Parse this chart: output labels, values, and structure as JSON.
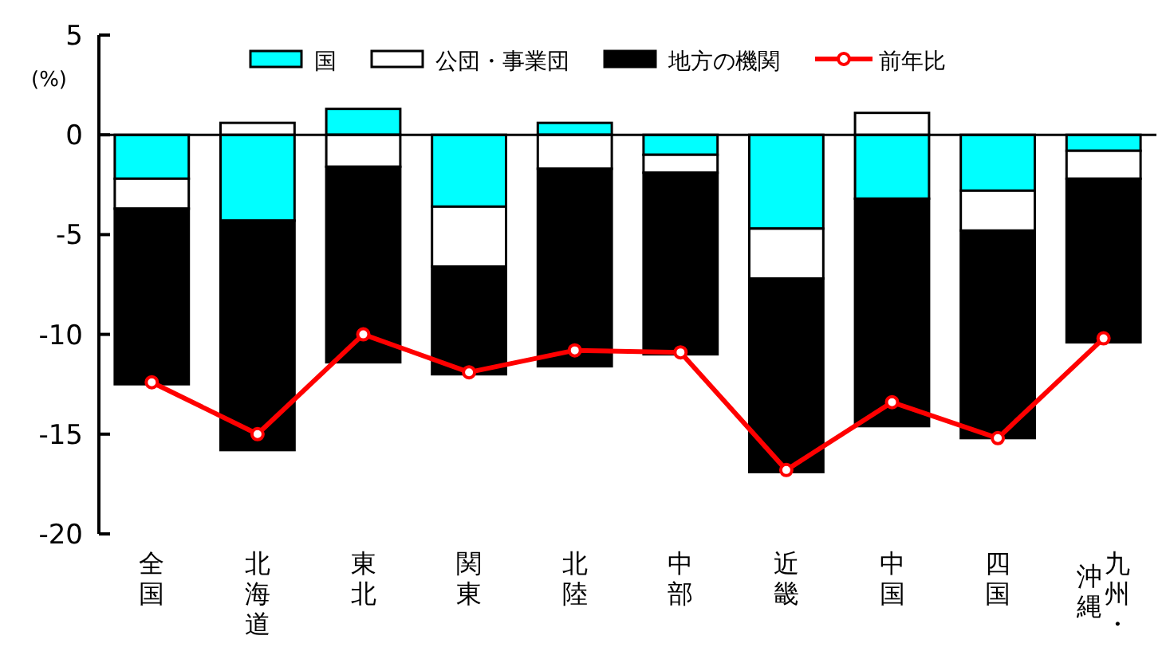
{
  "chart_data": {
    "type": "bar",
    "stacked": true,
    "ylabel": "(%)",
    "legend": "top",
    "ylim": [
      -20,
      5
    ],
    "yticks": [
      -20,
      -15,
      -10,
      -5,
      0,
      5
    ],
    "categories": [
      "全国",
      "北海道",
      "東北",
      "関東",
      "北陸",
      "中部",
      "近畿",
      "中国",
      "四国",
      "九州・沖縄"
    ],
    "series": [
      {
        "name": "国",
        "color": "#00ffff",
        "values": [
          -2.2,
          -4.3,
          1.3,
          -3.6,
          0.6,
          -1.0,
          -4.7,
          -3.2,
          -2.8,
          -0.8
        ]
      },
      {
        "name": "公団・事業団",
        "color": "#ffffff",
        "values": [
          -1.5,
          0.6,
          -1.6,
          -3.0,
          -1.7,
          -0.9,
          -2.5,
          1.1,
          -2.0,
          -1.4
        ]
      },
      {
        "name": "地方の機関",
        "color": "#000000",
        "values": [
          -8.8,
          -11.5,
          -9.8,
          -5.4,
          -9.9,
          -9.1,
          -9.7,
          -11.4,
          -10.4,
          -8.2
        ]
      },
      {
        "name": "前年比",
        "type": "line",
        "color": "#ff0000",
        "marker": "circle",
        "line_style": "solid",
        "values": [
          -12.4,
          -15.0,
          -10.0,
          -11.9,
          -10.8,
          -10.9,
          -16.8,
          -13.4,
          -15.2,
          -10.2
        ]
      }
    ]
  }
}
